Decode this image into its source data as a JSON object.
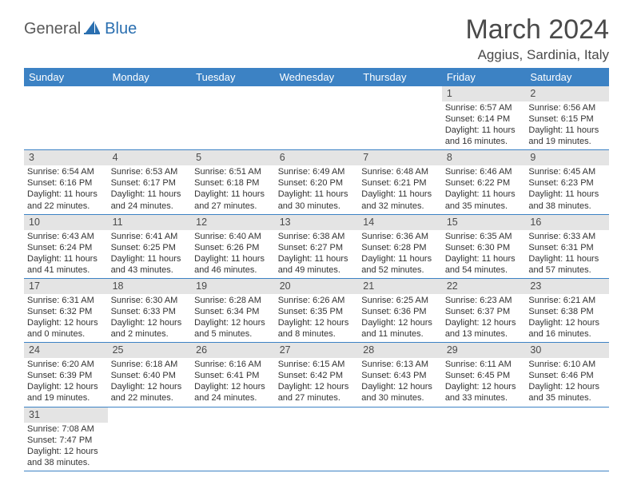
{
  "brand": {
    "part1": "General",
    "part2": "Blue"
  },
  "title": "March 2024",
  "location": "Aggius, Sardinia, Italy",
  "header_bg": "#3c82c4",
  "header_fg": "#ffffff",
  "daynum_bg": "#e4e4e4",
  "row_border": "#3c82c4",
  "daynames": [
    "Sunday",
    "Monday",
    "Tuesday",
    "Wednesday",
    "Thursday",
    "Friday",
    "Saturday"
  ],
  "weeks": [
    [
      null,
      null,
      null,
      null,
      null,
      {
        "n": "1",
        "sunrise": "Sunrise: 6:57 AM",
        "sunset": "Sunset: 6:14 PM",
        "day1": "Daylight: 11 hours",
        "day2": "and 16 minutes."
      },
      {
        "n": "2",
        "sunrise": "Sunrise: 6:56 AM",
        "sunset": "Sunset: 6:15 PM",
        "day1": "Daylight: 11 hours",
        "day2": "and 19 minutes."
      }
    ],
    [
      {
        "n": "3",
        "sunrise": "Sunrise: 6:54 AM",
        "sunset": "Sunset: 6:16 PM",
        "day1": "Daylight: 11 hours",
        "day2": "and 22 minutes."
      },
      {
        "n": "4",
        "sunrise": "Sunrise: 6:53 AM",
        "sunset": "Sunset: 6:17 PM",
        "day1": "Daylight: 11 hours",
        "day2": "and 24 minutes."
      },
      {
        "n": "5",
        "sunrise": "Sunrise: 6:51 AM",
        "sunset": "Sunset: 6:18 PM",
        "day1": "Daylight: 11 hours",
        "day2": "and 27 minutes."
      },
      {
        "n": "6",
        "sunrise": "Sunrise: 6:49 AM",
        "sunset": "Sunset: 6:20 PM",
        "day1": "Daylight: 11 hours",
        "day2": "and 30 minutes."
      },
      {
        "n": "7",
        "sunrise": "Sunrise: 6:48 AM",
        "sunset": "Sunset: 6:21 PM",
        "day1": "Daylight: 11 hours",
        "day2": "and 32 minutes."
      },
      {
        "n": "8",
        "sunrise": "Sunrise: 6:46 AM",
        "sunset": "Sunset: 6:22 PM",
        "day1": "Daylight: 11 hours",
        "day2": "and 35 minutes."
      },
      {
        "n": "9",
        "sunrise": "Sunrise: 6:45 AM",
        "sunset": "Sunset: 6:23 PM",
        "day1": "Daylight: 11 hours",
        "day2": "and 38 minutes."
      }
    ],
    [
      {
        "n": "10",
        "sunrise": "Sunrise: 6:43 AM",
        "sunset": "Sunset: 6:24 PM",
        "day1": "Daylight: 11 hours",
        "day2": "and 41 minutes."
      },
      {
        "n": "11",
        "sunrise": "Sunrise: 6:41 AM",
        "sunset": "Sunset: 6:25 PM",
        "day1": "Daylight: 11 hours",
        "day2": "and 43 minutes."
      },
      {
        "n": "12",
        "sunrise": "Sunrise: 6:40 AM",
        "sunset": "Sunset: 6:26 PM",
        "day1": "Daylight: 11 hours",
        "day2": "and 46 minutes."
      },
      {
        "n": "13",
        "sunrise": "Sunrise: 6:38 AM",
        "sunset": "Sunset: 6:27 PM",
        "day1": "Daylight: 11 hours",
        "day2": "and 49 minutes."
      },
      {
        "n": "14",
        "sunrise": "Sunrise: 6:36 AM",
        "sunset": "Sunset: 6:28 PM",
        "day1": "Daylight: 11 hours",
        "day2": "and 52 minutes."
      },
      {
        "n": "15",
        "sunrise": "Sunrise: 6:35 AM",
        "sunset": "Sunset: 6:30 PM",
        "day1": "Daylight: 11 hours",
        "day2": "and 54 minutes."
      },
      {
        "n": "16",
        "sunrise": "Sunrise: 6:33 AM",
        "sunset": "Sunset: 6:31 PM",
        "day1": "Daylight: 11 hours",
        "day2": "and 57 minutes."
      }
    ],
    [
      {
        "n": "17",
        "sunrise": "Sunrise: 6:31 AM",
        "sunset": "Sunset: 6:32 PM",
        "day1": "Daylight: 12 hours",
        "day2": "and 0 minutes."
      },
      {
        "n": "18",
        "sunrise": "Sunrise: 6:30 AM",
        "sunset": "Sunset: 6:33 PM",
        "day1": "Daylight: 12 hours",
        "day2": "and 2 minutes."
      },
      {
        "n": "19",
        "sunrise": "Sunrise: 6:28 AM",
        "sunset": "Sunset: 6:34 PM",
        "day1": "Daylight: 12 hours",
        "day2": "and 5 minutes."
      },
      {
        "n": "20",
        "sunrise": "Sunrise: 6:26 AM",
        "sunset": "Sunset: 6:35 PM",
        "day1": "Daylight: 12 hours",
        "day2": "and 8 minutes."
      },
      {
        "n": "21",
        "sunrise": "Sunrise: 6:25 AM",
        "sunset": "Sunset: 6:36 PM",
        "day1": "Daylight: 12 hours",
        "day2": "and 11 minutes."
      },
      {
        "n": "22",
        "sunrise": "Sunrise: 6:23 AM",
        "sunset": "Sunset: 6:37 PM",
        "day1": "Daylight: 12 hours",
        "day2": "and 13 minutes."
      },
      {
        "n": "23",
        "sunrise": "Sunrise: 6:21 AM",
        "sunset": "Sunset: 6:38 PM",
        "day1": "Daylight: 12 hours",
        "day2": "and 16 minutes."
      }
    ],
    [
      {
        "n": "24",
        "sunrise": "Sunrise: 6:20 AM",
        "sunset": "Sunset: 6:39 PM",
        "day1": "Daylight: 12 hours",
        "day2": "and 19 minutes."
      },
      {
        "n": "25",
        "sunrise": "Sunrise: 6:18 AM",
        "sunset": "Sunset: 6:40 PM",
        "day1": "Daylight: 12 hours",
        "day2": "and 22 minutes."
      },
      {
        "n": "26",
        "sunrise": "Sunrise: 6:16 AM",
        "sunset": "Sunset: 6:41 PM",
        "day1": "Daylight: 12 hours",
        "day2": "and 24 minutes."
      },
      {
        "n": "27",
        "sunrise": "Sunrise: 6:15 AM",
        "sunset": "Sunset: 6:42 PM",
        "day1": "Daylight: 12 hours",
        "day2": "and 27 minutes."
      },
      {
        "n": "28",
        "sunrise": "Sunrise: 6:13 AM",
        "sunset": "Sunset: 6:43 PM",
        "day1": "Daylight: 12 hours",
        "day2": "and 30 minutes."
      },
      {
        "n": "29",
        "sunrise": "Sunrise: 6:11 AM",
        "sunset": "Sunset: 6:45 PM",
        "day1": "Daylight: 12 hours",
        "day2": "and 33 minutes."
      },
      {
        "n": "30",
        "sunrise": "Sunrise: 6:10 AM",
        "sunset": "Sunset: 6:46 PM",
        "day1": "Daylight: 12 hours",
        "day2": "and 35 minutes."
      }
    ],
    [
      {
        "n": "31",
        "sunrise": "Sunrise: 7:08 AM",
        "sunset": "Sunset: 7:47 PM",
        "day1": "Daylight: 12 hours",
        "day2": "and 38 minutes."
      },
      null,
      null,
      null,
      null,
      null,
      null
    ]
  ]
}
